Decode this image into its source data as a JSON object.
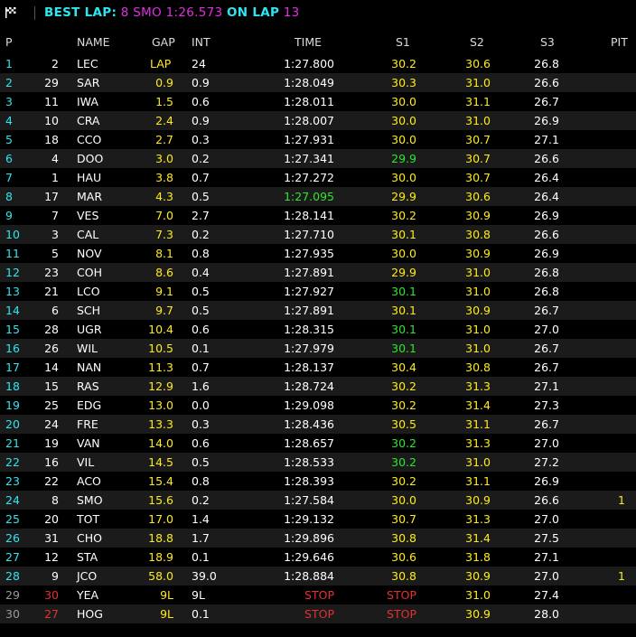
{
  "header": {
    "flag_icon": "checkered-flag-icon",
    "best_lap_label": "BEST LAP:",
    "best_lap_detail": "8 SMO 1:26.573",
    "on_lap_label": "ON LAP",
    "lap_number": "13"
  },
  "columns": {
    "p": "P",
    "name": "NAME",
    "gap": "GAP",
    "int": "INT",
    "time": "TIME",
    "s1": "S1",
    "s2": "S2",
    "s3": "S3",
    "pit": "PIT"
  },
  "colors": {
    "cyan": "#2de6f0",
    "magenta": "#e02ee0",
    "yellow": "#ffeb1a",
    "green": "#2ee62e",
    "red": "#e53030",
    "row_alt": "#1b1b1b"
  },
  "rows": [
    {
      "p": "1",
      "num": "2",
      "name": "LEC",
      "gap": "LAP",
      "int": "24",
      "time": "1:27.800",
      "s1": "30.2",
      "s2": "30.6",
      "s3": "26.8",
      "pit": ""
    },
    {
      "p": "2",
      "num": "29",
      "name": "SAR",
      "gap": "0.9",
      "int": "0.9",
      "time": "1:28.049",
      "s1": "30.3",
      "s2": "31.0",
      "s3": "26.6",
      "pit": ""
    },
    {
      "p": "3",
      "num": "11",
      "name": "IWA",
      "gap": "1.5",
      "int": "0.6",
      "time": "1:28.011",
      "s1": "30.0",
      "s2": "31.1",
      "s3": "26.7",
      "pit": ""
    },
    {
      "p": "4",
      "num": "10",
      "name": "CRA",
      "gap": "2.4",
      "int": "0.9",
      "time": "1:28.007",
      "s1": "30.0",
      "s2": "31.0",
      "s3": "26.9",
      "pit": ""
    },
    {
      "p": "5",
      "num": "18",
      "name": "CCO",
      "gap": "2.7",
      "int": "0.3",
      "time": "1:27.931",
      "s1": "30.0",
      "s2": "30.7",
      "s3": "27.1",
      "pit": ""
    },
    {
      "p": "6",
      "num": "4",
      "name": "DOO",
      "gap": "3.0",
      "int": "0.2",
      "time": "1:27.341",
      "s1": "29.9",
      "s2": "30.7",
      "s3": "26.6",
      "pit": "",
      "s1c": "green"
    },
    {
      "p": "7",
      "num": "1",
      "name": "HAU",
      "gap": "3.8",
      "int": "0.7",
      "time": "1:27.272",
      "s1": "30.0",
      "s2": "30.7",
      "s3": "26.4",
      "pit": ""
    },
    {
      "p": "8",
      "num": "17",
      "name": "MAR",
      "gap": "4.3",
      "int": "0.5",
      "time": "1:27.095",
      "s1": "29.9",
      "s2": "30.6",
      "s3": "26.4",
      "pit": "",
      "timec": "green"
    },
    {
      "p": "9",
      "num": "7",
      "name": "VES",
      "gap": "7.0",
      "int": "2.7",
      "time": "1:28.141",
      "s1": "30.2",
      "s2": "30.9",
      "s3": "26.9",
      "pit": ""
    },
    {
      "p": "10",
      "num": "3",
      "name": "CAL",
      "gap": "7.3",
      "int": "0.2",
      "time": "1:27.710",
      "s1": "30.1",
      "s2": "30.8",
      "s3": "26.6",
      "pit": ""
    },
    {
      "p": "11",
      "num": "5",
      "name": "NOV",
      "gap": "8.1",
      "int": "0.8",
      "time": "1:27.935",
      "s1": "30.0",
      "s2": "30.9",
      "s3": "26.9",
      "pit": ""
    },
    {
      "p": "12",
      "num": "23",
      "name": "COH",
      "gap": "8.6",
      "int": "0.4",
      "time": "1:27.891",
      "s1": "29.9",
      "s2": "31.0",
      "s3": "26.8",
      "pit": ""
    },
    {
      "p": "13",
      "num": "21",
      "name": "LCO",
      "gap": "9.1",
      "int": "0.5",
      "time": "1:27.927",
      "s1": "30.1",
      "s2": "31.0",
      "s3": "26.8",
      "pit": "",
      "s1c": "green"
    },
    {
      "p": "14",
      "num": "6",
      "name": "SCH",
      "gap": "9.7",
      "int": "0.5",
      "time": "1:27.891",
      "s1": "30.1",
      "s2": "30.9",
      "s3": "26.7",
      "pit": ""
    },
    {
      "p": "15",
      "num": "28",
      "name": "UGR",
      "gap": "10.4",
      "int": "0.6",
      "time": "1:28.315",
      "s1": "30.1",
      "s2": "31.0",
      "s3": "27.0",
      "pit": "",
      "s1c": "green"
    },
    {
      "p": "16",
      "num": "26",
      "name": "WIL",
      "gap": "10.5",
      "int": "0.1",
      "time": "1:27.979",
      "s1": "30.1",
      "s2": "31.0",
      "s3": "26.7",
      "pit": "",
      "s1c": "green"
    },
    {
      "p": "17",
      "num": "14",
      "name": "NAN",
      "gap": "11.3",
      "int": "0.7",
      "time": "1:28.137",
      "s1": "30.4",
      "s2": "30.8",
      "s3": "26.7",
      "pit": ""
    },
    {
      "p": "18",
      "num": "15",
      "name": "RAS",
      "gap": "12.9",
      "int": "1.6",
      "time": "1:28.724",
      "s1": "30.2",
      "s2": "31.3",
      "s3": "27.1",
      "pit": ""
    },
    {
      "p": "19",
      "num": "25",
      "name": "EDG",
      "gap": "13.0",
      "int": "0.0",
      "time": "1:29.098",
      "s1": "30.2",
      "s2": "31.4",
      "s3": "27.3",
      "pit": ""
    },
    {
      "p": "20",
      "num": "24",
      "name": "FRE",
      "gap": "13.3",
      "int": "0.3",
      "time": "1:28.436",
      "s1": "30.5",
      "s2": "31.1",
      "s3": "26.7",
      "pit": ""
    },
    {
      "p": "21",
      "num": "19",
      "name": "VAN",
      "gap": "14.0",
      "int": "0.6",
      "time": "1:28.657",
      "s1": "30.2",
      "s2": "31.3",
      "s3": "27.0",
      "pit": "",
      "s1c": "green"
    },
    {
      "p": "22",
      "num": "16",
      "name": "VIL",
      "gap": "14.5",
      "int": "0.5",
      "time": "1:28.533",
      "s1": "30.2",
      "s2": "31.0",
      "s3": "27.2",
      "pit": "",
      "s1c": "green"
    },
    {
      "p": "23",
      "num": "22",
      "name": "ACO",
      "gap": "15.4",
      "int": "0.8",
      "time": "1:28.393",
      "s1": "30.2",
      "s2": "31.1",
      "s3": "26.9",
      "pit": ""
    },
    {
      "p": "24",
      "num": "8",
      "name": "SMO",
      "gap": "15.6",
      "int": "0.2",
      "time": "1:27.584",
      "s1": "30.0",
      "s2": "30.9",
      "s3": "26.6",
      "pit": "1"
    },
    {
      "p": "25",
      "num": "20",
      "name": "TOT",
      "gap": "17.0",
      "int": "1.4",
      "time": "1:29.132",
      "s1": "30.7",
      "s2": "31.3",
      "s3": "27.0",
      "pit": ""
    },
    {
      "p": "26",
      "num": "31",
      "name": "CHO",
      "gap": "18.8",
      "int": "1.7",
      "time": "1:29.896",
      "s1": "30.8",
      "s2": "31.4",
      "s3": "27.5",
      "pit": ""
    },
    {
      "p": "27",
      "num": "12",
      "name": "STA",
      "gap": "18.9",
      "int": "0.1",
      "time": "1:29.646",
      "s1": "30.6",
      "s2": "31.8",
      "s3": "27.1",
      "pit": ""
    },
    {
      "p": "28",
      "num": "9",
      "name": "JCO",
      "gap": "58.0",
      "int": "39.0",
      "time": "1:28.884",
      "s1": "30.8",
      "s2": "30.9",
      "s3": "27.0",
      "pit": "1"
    },
    {
      "p": "29",
      "num": "30",
      "name": "YEA",
      "gap": "9L",
      "int": "9L",
      "time": "STOP",
      "s1": "STOP",
      "s2": "31.0",
      "s3": "27.4",
      "pit": "",
      "out": true
    },
    {
      "p": "30",
      "num": "27",
      "name": "HOG",
      "gap": "9L",
      "int": "0.1",
      "time": "STOP",
      "s1": "STOP",
      "s2": "30.9",
      "s3": "28.0",
      "pit": "",
      "out": true
    }
  ]
}
